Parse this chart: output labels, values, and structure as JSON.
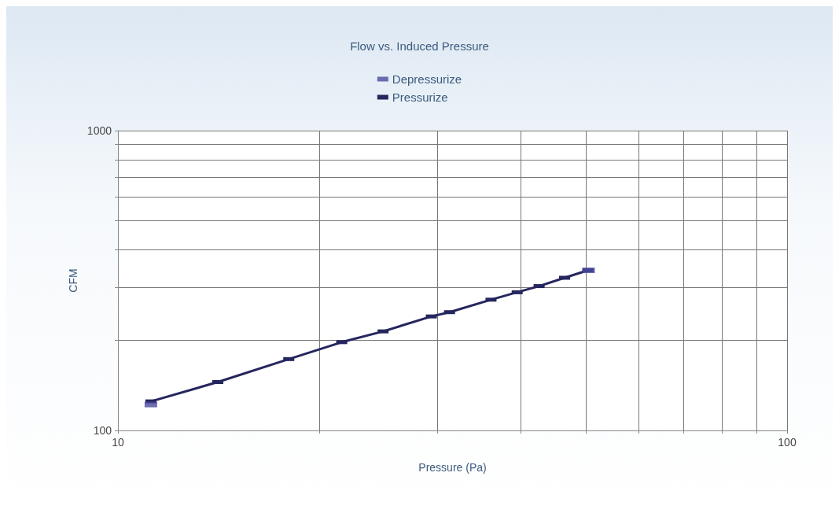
{
  "chart_data": {
    "type": "line",
    "title": "Flow vs. Induced Pressure",
    "xlabel": "Pressure (Pa)",
    "ylabel": "CFM",
    "log": "xy",
    "grid": true,
    "legend": "top",
    "marker": "square",
    "line_style": "solid",
    "xlim": [
      10,
      100
    ],
    "xticks": [
      10,
      {
        "value": 20,
        "label": null
      },
      {
        "value": 30,
        "label": null
      },
      {
        "value": 40,
        "label": null
      },
      {
        "value": 50,
        "label": null
      },
      {
        "value": 60,
        "label": null
      },
      {
        "value": 70,
        "label": null
      },
      {
        "value": 80,
        "label": null
      },
      {
        "value": 90,
        "label": null
      },
      100
    ],
    "ylim": [
      100,
      1000
    ],
    "yticks": [
      100,
      {
        "value": 200,
        "label": null
      },
      {
        "value": 300,
        "label": null
      },
      {
        "value": 400,
        "label": null
      },
      {
        "value": 500,
        "label": null
      },
      {
        "value": 600,
        "label": null
      },
      {
        "value": 700,
        "label": null
      },
      {
        "value": 800,
        "label": null
      },
      {
        "value": 900,
        "label": null
      },
      1000
    ],
    "series": [
      {
        "name": "Depressurize",
        "color": "#4a4a9e",
        "type": "scatter",
        "x": [
          11.2,
          50.5
        ],
        "values": [
          122,
          342
        ]
      },
      {
        "name": "Pressurize",
        "color": "#26265e",
        "type": "line",
        "x": [
          11.2,
          14.1,
          18.0,
          21.6,
          24.9,
          29.4,
          31.3,
          36.1,
          39.5,
          42.6,
          46.5,
          50.4
        ],
        "values": [
          125,
          145,
          173,
          197,
          214,
          240,
          248,
          273,
          289,
          303,
          323,
          342
        ]
      }
    ]
  }
}
